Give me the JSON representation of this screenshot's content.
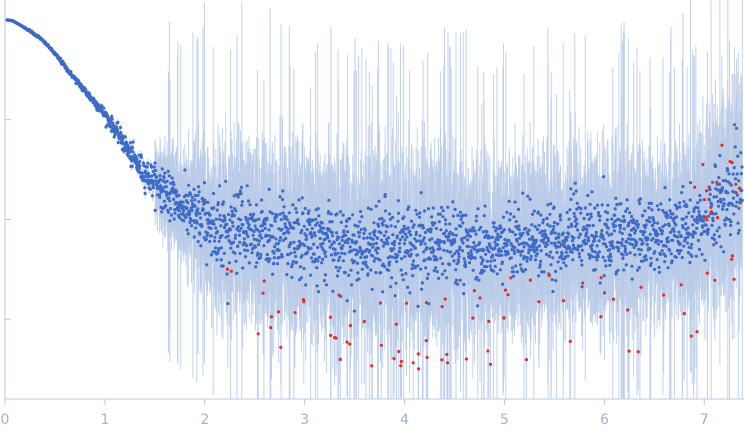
{
  "chart_data": {
    "type": "scatter",
    "title": "",
    "xlabel": "",
    "ylabel": "",
    "xlim": [
      0,
      7.4
    ],
    "ylim": [
      -1.8,
      2.2
    ],
    "x_ticks": [
      "0",
      "1",
      "2",
      "3",
      "4",
      "5",
      "6",
      "7"
    ],
    "y_ticks_labeled": false,
    "y_tick_values": [
      1.0,
      0.0,
      -1.0
    ],
    "grid": false,
    "legend": "none",
    "colors": {
      "points": "#3d6bc6",
      "outliers": "#e0302b",
      "error_bars": "#b9cbe8",
      "axis": "#b9c9e2",
      "tick_labels": "#9bb4d6"
    },
    "series": [
      {
        "name": "",
        "x": [
          0.03,
          0.08,
          0.15,
          0.25,
          0.35,
          0.45,
          0.55,
          0.65,
          0.75,
          0.85,
          0.95,
          1.05,
          1.15,
          1.25,
          1.35,
          1.45,
          1.55,
          1.65,
          1.75,
          1.85,
          1.95,
          2.1,
          2.3,
          2.5,
          2.7,
          2.9,
          3.1,
          3.3,
          3.5,
          3.7,
          3.9,
          4.1,
          4.3,
          4.5,
          4.7,
          4.9,
          5.1,
          5.3,
          5.5,
          5.7,
          5.9,
          6.1,
          6.3,
          6.5,
          6.7,
          6.9,
          7.1,
          7.3
        ],
        "y": [
          2.0,
          1.99,
          1.95,
          1.89,
          1.82,
          1.72,
          1.6,
          1.47,
          1.35,
          1.23,
          1.12,
          0.98,
          0.83,
          0.66,
          0.52,
          0.42,
          0.33,
          0.24,
          0.14,
          0.06,
          0.0,
          -0.08,
          -0.12,
          -0.15,
          -0.17,
          -0.2,
          -0.22,
          -0.25,
          -0.26,
          -0.26,
          -0.27,
          -0.25,
          -0.25,
          -0.24,
          -0.25,
          -0.22,
          -0.22,
          -0.21,
          -0.2,
          -0.18,
          -0.18,
          -0.16,
          -0.15,
          -0.14,
          -0.13,
          -0.08,
          0.05,
          0.3
        ],
        "spread": [
          0.0,
          0.0,
          0.0,
          0.01,
          0.01,
          0.01,
          0.02,
          0.02,
          0.03,
          0.04,
          0.05,
          0.06,
          0.08,
          0.1,
          0.12,
          0.14,
          0.16,
          0.18,
          0.2,
          0.24,
          0.28,
          0.32,
          0.34,
          0.34,
          0.36,
          0.36,
          0.36,
          0.36,
          0.36,
          0.36,
          0.36,
          0.36,
          0.36,
          0.36,
          0.34,
          0.34,
          0.34,
          0.34,
          0.34,
          0.34,
          0.33,
          0.33,
          0.33,
          0.32,
          0.32,
          0.34,
          0.38,
          0.45
        ]
      }
    ]
  }
}
